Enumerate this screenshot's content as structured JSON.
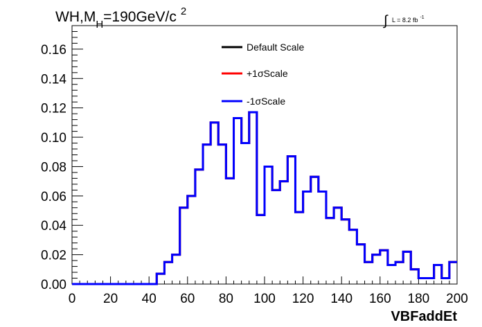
{
  "chart_data": {
    "type": "line",
    "title": {
      "base": "WH,M",
      "sub": "H",
      "eq": "=190GeV/c",
      "sup": "2"
    },
    "lumi": {
      "text": "L = 8.2 fb",
      "sup": "-1"
    },
    "xlabel": "VBFaddEt",
    "ylabel": "",
    "xlim": [
      0,
      200
    ],
    "ylim": [
      0,
      0.176
    ],
    "xticks": [
      "0",
      "20",
      "40",
      "60",
      "80",
      "100",
      "120",
      "140",
      "160",
      "180",
      "200"
    ],
    "yticks": [
      "0.00",
      "0.02",
      "0.04",
      "0.06",
      "0.08",
      "0.10",
      "0.12",
      "0.14",
      "0.16"
    ],
    "bin_width": 4,
    "legend_position": "top-center",
    "series": [
      {
        "name": "Default Scale",
        "color": "#000000",
        "values": [
          0,
          0,
          0,
          0,
          0,
          0,
          0,
          0,
          0,
          0,
          0,
          0.007,
          0.015,
          0.02,
          0.052,
          0.06,
          0.078,
          0.095,
          0.11,
          0.095,
          0.072,
          0.113,
          0.096,
          0.117,
          0.047,
          0.08,
          0.064,
          0.07,
          0.087,
          0.049,
          0.063,
          0.073,
          0.063,
          0.045,
          0.052,
          0.044,
          0.037,
          0.027,
          0.015,
          0.02,
          0.023,
          0.013,
          0.015,
          0.022,
          0.01,
          0.004,
          0.004,
          0.013,
          0.004,
          0.015
        ]
      },
      {
        "name": "+1σScale",
        "color": "#ff0000",
        "values": [
          0,
          0,
          0,
          0,
          0,
          0,
          0,
          0,
          0,
          0,
          0,
          0.007,
          0.015,
          0.02,
          0.052,
          0.06,
          0.078,
          0.095,
          0.11,
          0.095,
          0.072,
          0.113,
          0.096,
          0.117,
          0.047,
          0.08,
          0.064,
          0.07,
          0.087,
          0.049,
          0.063,
          0.073,
          0.063,
          0.045,
          0.052,
          0.044,
          0.037,
          0.027,
          0.015,
          0.02,
          0.023,
          0.013,
          0.015,
          0.022,
          0.01,
          0.004,
          0.004,
          0.013,
          0.004,
          0.015
        ]
      },
      {
        "name": "-1σScale",
        "color": "#0000ff",
        "values": [
          0,
          0,
          0,
          0,
          0,
          0,
          0,
          0,
          0,
          0,
          0,
          0.007,
          0.015,
          0.02,
          0.052,
          0.06,
          0.078,
          0.095,
          0.11,
          0.095,
          0.072,
          0.113,
          0.096,
          0.117,
          0.047,
          0.08,
          0.064,
          0.07,
          0.087,
          0.049,
          0.063,
          0.073,
          0.063,
          0.045,
          0.052,
          0.044,
          0.037,
          0.027,
          0.015,
          0.02,
          0.023,
          0.013,
          0.015,
          0.022,
          0.01,
          0.004,
          0.004,
          0.013,
          0.004,
          0.015
        ]
      }
    ]
  }
}
